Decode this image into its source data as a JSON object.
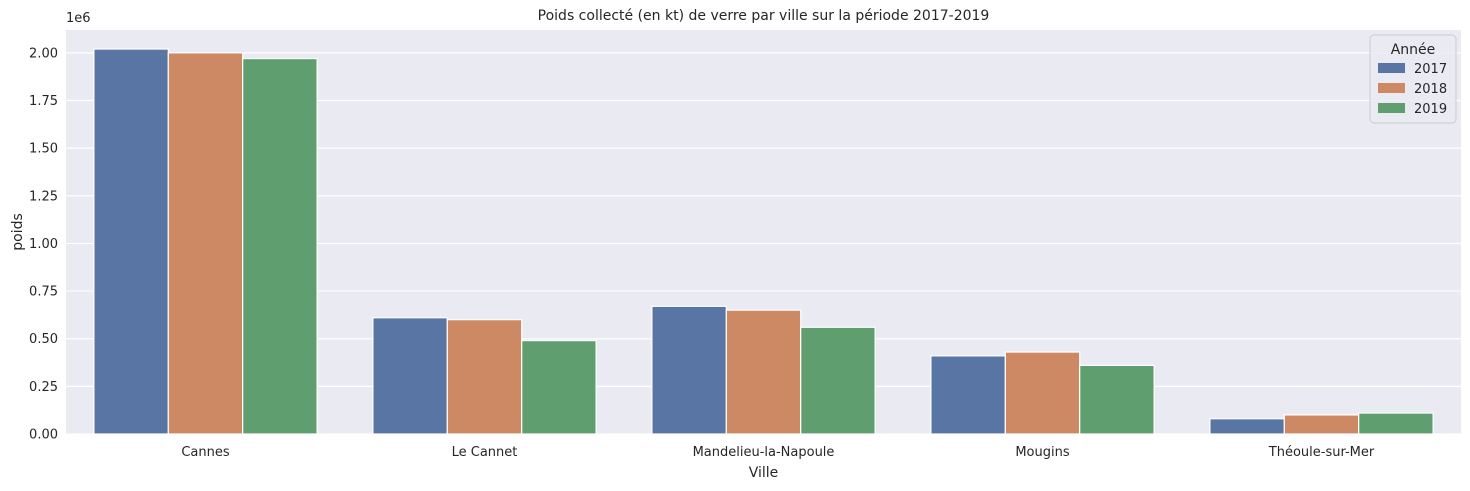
{
  "chart_data": {
    "type": "bar",
    "title": "Poids collecté (en kt) de verre par ville sur la période 2017-2019",
    "xlabel": "Ville",
    "ylabel": "poids",
    "scale_note": "1e6",
    "categories": [
      "Cannes",
      "Le Cannet",
      "Mandelieu-la-Napoule",
      "Mougins",
      "Théoule-sur-Mer"
    ],
    "series": [
      {
        "name": "2017",
        "color": "#5875a4",
        "values": [
          2.02,
          0.61,
          0.67,
          0.41,
          0.08
        ]
      },
      {
        "name": "2018",
        "color": "#cc8963",
        "values": [
          2.0,
          0.6,
          0.65,
          0.43,
          0.1
        ]
      },
      {
        "name": "2019",
        "color": "#5f9e6e",
        "values": [
          1.97,
          0.49,
          0.56,
          0.36,
          0.11
        ]
      }
    ],
    "ylim": [
      0,
      2.12
    ],
    "yticks": [
      0.0,
      0.25,
      0.5,
      0.75,
      1.0,
      1.25,
      1.5,
      1.75,
      2.0
    ],
    "ytick_labels": [
      "0.00",
      "0.25",
      "0.50",
      "0.75",
      "1.00",
      "1.25",
      "1.50",
      "1.75",
      "2.00"
    ],
    "grid": true,
    "background": "#eaeaf2",
    "legend": {
      "title": "Année",
      "placement": "top-right"
    }
  }
}
